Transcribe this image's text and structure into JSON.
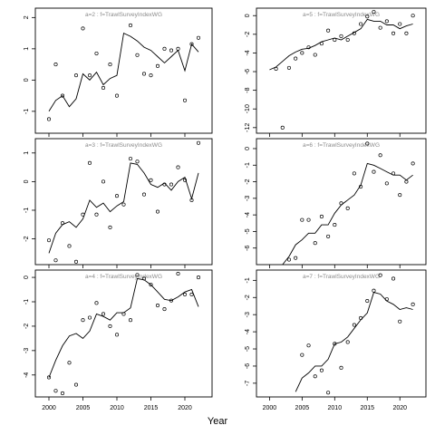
{
  "xlabel": "Year",
  "chart_data": [
    {
      "type": "scatter",
      "title": "a=2  :  f=TrawlSurveyIndexWG",
      "xlim": [
        1998,
        2024
      ],
      "ylim": [
        -1.7,
        2.3
      ],
      "xticks": [
        2000,
        2005,
        2010,
        2015,
        2020
      ],
      "yticks": [
        -1,
        0,
        1,
        2
      ],
      "show_x_tick_labels": false,
      "series": [
        {
          "kind": "points",
          "x": [
            2000,
            2001,
            2002,
            2003,
            2004,
            2005,
            2006,
            2007,
            2008,
            2009,
            2010,
            2011,
            2012,
            2013,
            2014,
            2015,
            2016,
            2017,
            2018,
            2019,
            2020,
            2021,
            2022
          ],
          "y": [
            -1.25,
            0.5,
            -0.5,
            -1.85,
            0.15,
            1.65,
            0.15,
            0.85,
            -0.25,
            0.5,
            -0.5,
            2.4,
            1.75,
            0.8,
            0.2,
            0.15,
            0.45,
            1.0,
            0.95,
            1.0,
            -0.65,
            1.15,
            1.35
          ]
        },
        {
          "kind": "line",
          "x": [
            2000,
            2001,
            2002,
            2003,
            2004,
            2005,
            2006,
            2007,
            2008,
            2009,
            2010,
            2011,
            2012,
            2013,
            2014,
            2015,
            2016,
            2017,
            2018,
            2019,
            2020,
            2021,
            2022
          ],
          "y": [
            -1.0,
            -0.65,
            -0.5,
            -0.85,
            -0.6,
            0.2,
            0.0,
            0.25,
            -0.15,
            0.05,
            0.15,
            1.5,
            1.4,
            1.25,
            1.05,
            0.95,
            0.75,
            0.55,
            0.75,
            0.95,
            0.3,
            1.15,
            0.9
          ]
        }
      ]
    },
    {
      "type": "scatter",
      "title": "a=5  :  f=TrawlSurveyIndexWG",
      "xlim": [
        1998,
        2024
      ],
      "ylim": [
        -12.6,
        0.8
      ],
      "xticks": [
        2000,
        2005,
        2010,
        2015,
        2020
      ],
      "yticks": [
        -12,
        -10,
        -8,
        -6,
        -4,
        -2,
        0
      ],
      "show_x_tick_labels": false,
      "series": [
        {
          "kind": "points",
          "x": [
            2001,
            2002,
            2003,
            2004,
            2005,
            2006,
            2007,
            2008,
            2009,
            2010,
            2011,
            2012,
            2013,
            2014,
            2015,
            2016,
            2017,
            2018,
            2019,
            2020,
            2021,
            2022
          ],
          "y": [
            -5.7,
            -12.0,
            -5.6,
            -4.6,
            -4.0,
            -3.4,
            -4.2,
            -3.0,
            -1.6,
            -2.6,
            -2.2,
            -2.6,
            -1.9,
            -0.9,
            -0.1,
            0.4,
            -1.3,
            -0.6,
            -1.9,
            -0.9,
            -1.9,
            0.0
          ]
        },
        {
          "kind": "line",
          "x": [
            2000,
            2001,
            2002,
            2003,
            2004,
            2005,
            2006,
            2007,
            2008,
            2009,
            2010,
            2011,
            2012,
            2013,
            2014,
            2015,
            2016,
            2017,
            2018,
            2019,
            2020,
            2021,
            2022
          ],
          "y": [
            -5.8,
            -5.5,
            -4.9,
            -4.3,
            -3.9,
            -3.6,
            -3.5,
            -3.2,
            -2.8,
            -2.6,
            -2.4,
            -2.6,
            -2.2,
            -1.8,
            -1.4,
            -0.4,
            -0.6,
            -0.6,
            -1.0,
            -1.0,
            -1.4,
            -1.1,
            -0.9
          ]
        }
      ]
    },
    {
      "type": "scatter",
      "title": "a=3  :  f=TrawlSurveyIndexWG",
      "xlim": [
        1998,
        2024
      ],
      "ylim": [
        -2.9,
        1.5
      ],
      "xticks": [
        2000,
        2005,
        2010,
        2015,
        2020
      ],
      "yticks": [
        -2,
        -1,
        0,
        1
      ],
      "show_x_tick_labels": false,
      "series": [
        {
          "kind": "points",
          "x": [
            2000,
            2001,
            2002,
            2003,
            2004,
            2005,
            2006,
            2007,
            2008,
            2009,
            2010,
            2011,
            2012,
            2013,
            2014,
            2015,
            2016,
            2017,
            2018,
            2019,
            2020,
            2021,
            2022
          ],
          "y": [
            -2.05,
            -2.75,
            -1.45,
            -2.25,
            -2.8,
            -1.15,
            0.65,
            -1.15,
            0.0,
            -1.6,
            -0.5,
            -0.8,
            0.8,
            0.7,
            -0.45,
            0.05,
            -1.05,
            -0.1,
            -0.1,
            0.5,
            0.05,
            -0.65,
            1.35
          ]
        },
        {
          "kind": "line",
          "x": [
            2000,
            2001,
            2002,
            2003,
            2004,
            2005,
            2006,
            2007,
            2008,
            2009,
            2010,
            2011,
            2012,
            2013,
            2014,
            2015,
            2016,
            2017,
            2018,
            2019,
            2020,
            2021,
            2022
          ],
          "y": [
            -2.5,
            -1.8,
            -1.5,
            -1.4,
            -1.6,
            -1.3,
            -0.65,
            -0.9,
            -0.75,
            -1.05,
            -0.85,
            -0.7,
            0.65,
            0.6,
            0.3,
            -0.1,
            -0.2,
            -0.05,
            -0.3,
            0.0,
            0.15,
            -0.6,
            0.3
          ]
        }
      ]
    },
    {
      "type": "scatter",
      "title": "a=6  :  f=TrawlSurveyIndexWG",
      "xlim": [
        1998,
        2024
      ],
      "ylim": [
        -7.0,
        0.6
      ],
      "xticks": [
        2000,
        2005,
        2010,
        2015,
        2020
      ],
      "yticks": [
        -6,
        -5,
        -4,
        -3,
        -2,
        -1,
        0
      ],
      "show_x_tick_labels": false,
      "series": [
        {
          "kind": "points",
          "x": [
            2003,
            2004,
            2005,
            2006,
            2007,
            2008,
            2009,
            2010,
            2011,
            2012,
            2013,
            2014,
            2015,
            2016,
            2017,
            2018,
            2019,
            2020,
            2021,
            2022
          ],
          "y": [
            -6.7,
            -6.6,
            -4.3,
            -4.3,
            -5.7,
            -4.1,
            -5.3,
            -4.6,
            -3.3,
            -3.6,
            -1.5,
            -2.3,
            0.3,
            -1.4,
            -0.4,
            -2.1,
            -1.5,
            -2.8,
            -2.0,
            -0.9
          ]
        },
        {
          "kind": "line",
          "x": [
            2002,
            2003,
            2004,
            2005,
            2006,
            2007,
            2008,
            2009,
            2010,
            2011,
            2012,
            2013,
            2014,
            2015,
            2016,
            2017,
            2018,
            2019,
            2020,
            2021,
            2022
          ],
          "y": [
            -7.0,
            -6.5,
            -5.8,
            -5.5,
            -5.1,
            -5.1,
            -4.6,
            -4.6,
            -3.9,
            -3.4,
            -3.1,
            -2.8,
            -2.2,
            -0.9,
            -1.0,
            -1.2,
            -1.4,
            -1.6,
            -1.6,
            -1.9,
            -1.6
          ]
        }
      ]
    },
    {
      "type": "scatter",
      "title": "a=4  :  f=TrawlSurveyIndexWG",
      "xlim": [
        1998,
        2024
      ],
      "ylim": [
        -4.9,
        0.3
      ],
      "xticks": [
        2000,
        2005,
        2010,
        2015,
        2020
      ],
      "yticks": [
        -4,
        -3,
        -2,
        -1,
        0
      ],
      "show_x_tick_labels": true,
      "series": [
        {
          "kind": "points",
          "x": [
            2000,
            2001,
            2002,
            2003,
            2004,
            2005,
            2006,
            2007,
            2008,
            2009,
            2010,
            2011,
            2012,
            2013,
            2014,
            2015,
            2016,
            2017,
            2018,
            2019,
            2020,
            2021,
            2022
          ],
          "y": [
            -4.1,
            -4.65,
            -4.75,
            -3.5,
            -4.4,
            -1.75,
            -1.65,
            -1.05,
            -1.5,
            -2.0,
            -2.35,
            -1.5,
            -1.75,
            0.1,
            -0.05,
            -0.3,
            -1.15,
            -1.3,
            -0.95,
            0.15,
            -0.7,
            -0.7,
            0.0
          ]
        },
        {
          "kind": "line",
          "x": [
            2000,
            2001,
            2002,
            2003,
            2004,
            2005,
            2006,
            2007,
            2008,
            2009,
            2010,
            2011,
            2012,
            2013,
            2014,
            2015,
            2016,
            2017,
            2018,
            2019,
            2020,
            2021,
            2022
          ],
          "y": [
            -4.1,
            -3.4,
            -2.8,
            -2.4,
            -2.3,
            -2.5,
            -2.2,
            -1.5,
            -1.6,
            -1.75,
            -1.45,
            -1.45,
            -1.25,
            -0.05,
            -0.1,
            -0.3,
            -0.6,
            -0.9,
            -0.95,
            -0.8,
            -0.6,
            -0.5,
            -1.2
          ]
        }
      ]
    },
    {
      "type": "scatter",
      "title": "a=7  :  f=TrawlSurveyIndexWG",
      "xlim": [
        1998,
        2024
      ],
      "ylim": [
        -7.8,
        -0.4
      ],
      "xticks": [
        2000,
        2005,
        2010,
        2015,
        2020
      ],
      "yticks": [
        -7,
        -6,
        -5,
        -4,
        -3,
        -2,
        -1
      ],
      "show_x_tick_labels": true,
      "series": [
        {
          "kind": "points",
          "x": [
            2005,
            2006,
            2007,
            2008,
            2009,
            2010,
            2011,
            2012,
            2013,
            2014,
            2015,
            2016,
            2017,
            2018,
            2019,
            2020,
            2022
          ],
          "y": [
            -5.35,
            -4.8,
            -6.6,
            -6.25,
            -7.55,
            -4.7,
            -6.1,
            -4.6,
            -3.6,
            -3.2,
            -2.2,
            -1.6,
            -0.7,
            -2.1,
            -0.9,
            -3.4,
            -2.4
          ]
        },
        {
          "kind": "line",
          "x": [
            2004,
            2005,
            2006,
            2007,
            2008,
            2009,
            2010,
            2011,
            2012,
            2013,
            2014,
            2015,
            2016,
            2017,
            2018,
            2019,
            2020,
            2021,
            2022
          ],
          "y": [
            -7.5,
            -6.7,
            -6.4,
            -6.0,
            -6.0,
            -5.6,
            -4.7,
            -4.6,
            -4.3,
            -3.8,
            -3.3,
            -2.9,
            -1.7,
            -1.8,
            -2.2,
            -2.4,
            -2.7,
            -2.6,
            -2.7
          ]
        }
      ]
    }
  ]
}
